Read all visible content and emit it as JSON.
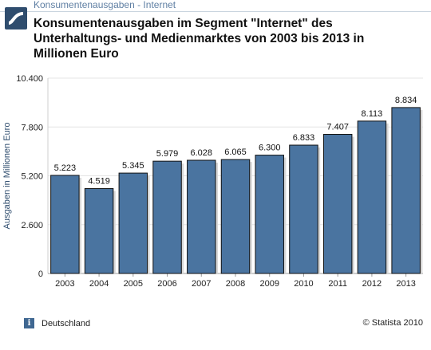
{
  "header": {
    "breadcrumb": "Konsumentenausgaben - Internet",
    "title": "Konsumentenausgaben im Segment \"Internet\" des Unterhaltungs- und Medienmarktes von 2003 bis 2013 in Millionen Euro",
    "logo_icon": "statista-logo-icon"
  },
  "footer": {
    "info_icon": "info-icon",
    "info_glyph": "i",
    "region": "Deutschland",
    "source": "© Statista 2010"
  },
  "colors": {
    "bar_fill": "#4a74a0",
    "bar_stroke": "#111111",
    "grid": "#e4e4e4",
    "axis_label": "#2f4d6e"
  },
  "chart_data": {
    "type": "bar",
    "categories": [
      "2003",
      "2004",
      "2005",
      "2006",
      "2007",
      "2008",
      "2009",
      "2010",
      "2011",
      "2012",
      "2013"
    ],
    "values": [
      5223,
      4519,
      5345,
      5979,
      6028,
      6065,
      6300,
      6833,
      7407,
      8113,
      8834
    ],
    "value_labels": [
      "5.223",
      "4.519",
      "5.345",
      "5.979",
      "6.028",
      "6.065",
      "6.300",
      "6.833",
      "7.407",
      "8.113",
      "8.834"
    ],
    "ylabel": "Ausgaben in Millionen Euro",
    "xlabel": "",
    "ylim": [
      0,
      10400
    ],
    "yticks": [
      0,
      2600,
      5200,
      7800,
      10400
    ],
    "ytick_labels": [
      "0",
      "2.600",
      "5.200",
      "7.800",
      "10.400"
    ],
    "grid": true
  }
}
